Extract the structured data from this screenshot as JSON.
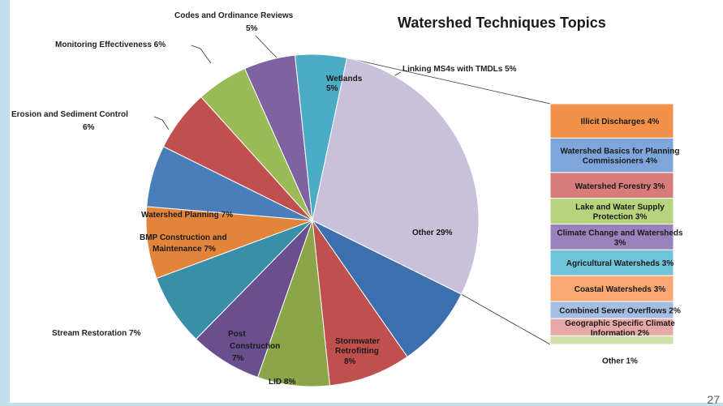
{
  "page_number": "27",
  "chart_data": {
    "type": "bar-of-pie",
    "title": "Watershed Techniques Topics",
    "pie": [
      {
        "label": "Wetlands 5%",
        "value": 5,
        "color": "#7e62a1"
      },
      {
        "label": "Linking MS4s with TMDLs 5%",
        "value": 5,
        "color": "#4bacc6"
      },
      {
        "label": "Other 29%",
        "value": 29,
        "color": "#c9c0da"
      },
      {
        "label": "Stormwater Retrofitting 8%",
        "value": 8,
        "color": "#3b6fad"
      },
      {
        "label": "LID 8%",
        "value": 8,
        "color": "#c0504d"
      },
      {
        "label": "Post Construction 7%",
        "value": 7,
        "color": "#8aa648"
      },
      {
        "label": "Stream Restoration 7%",
        "value": 7,
        "color": "#6a4f8e"
      },
      {
        "label": "BMP Construction and Maintenance 7%",
        "value": 7,
        "color": "#3a8fa8"
      },
      {
        "label": "Watershed Planning 7%",
        "value": 7,
        "color": "#e2853a"
      },
      {
        "label": "Erosion and Sediment Control 6%",
        "value": 6,
        "color": "#4a7ebb"
      },
      {
        "label": "Monitoring Effectiveness 6%",
        "value": 6,
        "color": "#c0504d"
      },
      {
        "label": "Codes and Ordinance Reviews 5%",
        "value": 5,
        "color": "#9bbb59"
      }
    ],
    "bar": [
      {
        "label": "Illicit Discharges 4%",
        "value": 4,
        "color": "#f3914b"
      },
      {
        "label": "Watershed Basics for Planning Commissioners 4%",
        "value": 4,
        "color": "#7ea6dc"
      },
      {
        "label": "Watershed Forestry 3%",
        "value": 3,
        "color": "#d77c7a"
      },
      {
        "label": "Lake and Water Supply Protection 3%",
        "value": 3,
        "color": "#b7d37b"
      },
      {
        "label": "Climate Change and Watersheds 3%",
        "value": 3,
        "color": "#9a82bd"
      },
      {
        "label": "Agricultural Watersheds 3%",
        "value": 3,
        "color": "#70c3d9"
      },
      {
        "label": "Coastal Watersheds 3%",
        "value": 3,
        "color": "#f8a870"
      },
      {
        "label": "Combined Sewer Overflows 2%",
        "value": 2,
        "color": "#a5bee2"
      },
      {
        "label": "Geographic Specific Climate Information 2%",
        "value": 2,
        "color": "#e6a8a7"
      },
      {
        "label": "Other 1%",
        "value": 1,
        "color": "#cfe0a8"
      }
    ]
  }
}
